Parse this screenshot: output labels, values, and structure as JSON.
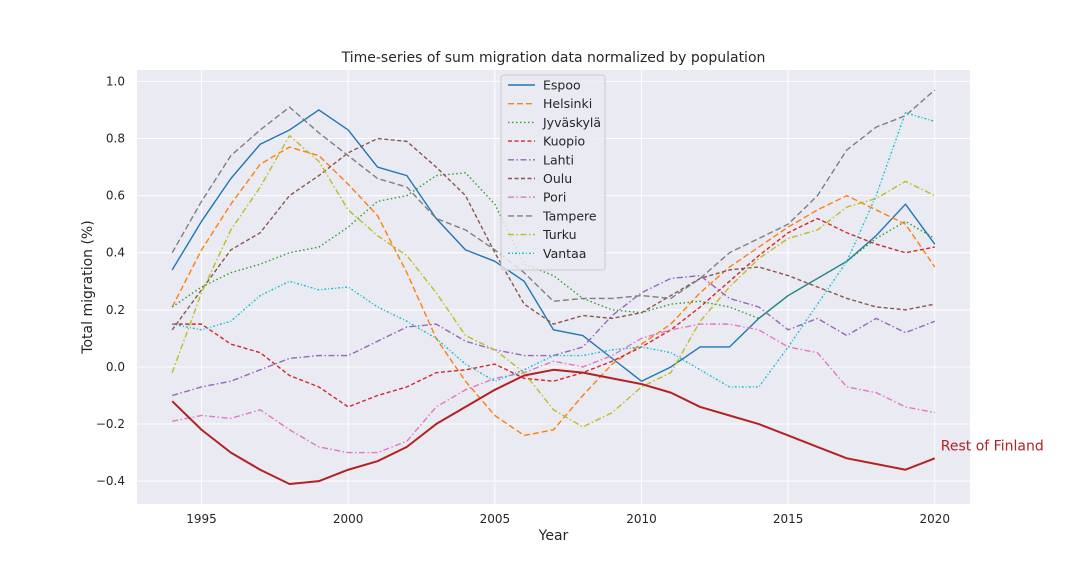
{
  "chart_data": {
    "type": "line",
    "title": "Time-series of sum migration data normalized by population",
    "xlabel": "Year",
    "ylabel": "Total migration (%)",
    "xlim": [
      1992.8,
      2021.2
    ],
    "ylim": [
      -0.48,
      1.04
    ],
    "xticks": [
      1995,
      2000,
      2005,
      2010,
      2015,
      2020
    ],
    "yticks": [
      -0.4,
      -0.2,
      0.0,
      0.2,
      0.4,
      0.6,
      0.8,
      1.0
    ],
    "ytick_labels": [
      "−0.4",
      "−0.2",
      "0.0",
      "0.2",
      "0.4",
      "0.6",
      "0.8",
      "1.0"
    ],
    "grid": true,
    "legend_position": "upper-center",
    "x": [
      1994,
      1995,
      1996,
      1997,
      1998,
      1999,
      2000,
      2001,
      2002,
      2003,
      2004,
      2005,
      2006,
      2007,
      2008,
      2009,
      2010,
      2011,
      2012,
      2013,
      2014,
      2015,
      2016,
      2017,
      2018,
      2019,
      2020
    ],
    "series": [
      {
        "name": "Espoo",
        "color": "#1f77b4",
        "dash": "solid",
        "values": [
          0.34,
          0.51,
          0.66,
          0.78,
          0.83,
          0.9,
          0.83,
          0.7,
          0.67,
          0.52,
          0.41,
          0.37,
          0.3,
          0.13,
          0.11,
          0.03,
          -0.05,
          0.0,
          0.07,
          0.07,
          0.17,
          0.25,
          0.31,
          0.37,
          0.46,
          0.57,
          0.43
        ]
      },
      {
        "name": "Helsinki",
        "color": "#ff7f0e",
        "dash": "dashed",
        "values": [
          0.21,
          0.41,
          0.57,
          0.71,
          0.77,
          0.74,
          0.64,
          0.53,
          0.33,
          0.1,
          -0.05,
          -0.17,
          -0.24,
          -0.22,
          -0.1,
          0.01,
          0.08,
          0.15,
          0.26,
          0.35,
          0.42,
          0.49,
          0.55,
          0.6,
          0.55,
          0.5,
          0.35
        ]
      },
      {
        "name": "Jyväskylä",
        "color": "#2ca02c",
        "dash": "dotted",
        "values": [
          0.21,
          0.28,
          0.33,
          0.36,
          0.4,
          0.42,
          0.49,
          0.58,
          0.6,
          0.67,
          0.68,
          0.57,
          0.36,
          0.32,
          0.24,
          0.2,
          0.19,
          0.22,
          0.23,
          0.21,
          0.17,
          0.25,
          0.31,
          0.37,
          0.45,
          0.51,
          0.45
        ]
      },
      {
        "name": "Kuopio",
        "color": "#d62728",
        "dash": "dashed-short",
        "values": [
          0.15,
          0.15,
          0.08,
          0.05,
          -0.03,
          -0.07,
          -0.14,
          -0.1,
          -0.07,
          -0.02,
          -0.01,
          0.01,
          -0.04,
          -0.05,
          -0.02,
          0.02,
          0.07,
          0.13,
          0.21,
          0.3,
          0.39,
          0.47,
          0.52,
          0.47,
          0.43,
          0.4,
          0.42
        ]
      },
      {
        "name": "Lahti",
        "color": "#9467bd",
        "dash": "dashdot",
        "values": [
          -0.1,
          -0.07,
          -0.05,
          -0.01,
          0.03,
          0.04,
          0.04,
          0.09,
          0.14,
          0.15,
          0.09,
          0.06,
          0.04,
          0.04,
          0.07,
          0.18,
          0.26,
          0.31,
          0.32,
          0.24,
          0.21,
          0.13,
          0.17,
          0.11,
          0.17,
          0.12,
          0.16
        ]
      },
      {
        "name": "Oulu",
        "color": "#8c564b",
        "dash": "dashed-short",
        "values": [
          0.13,
          0.27,
          0.41,
          0.47,
          0.6,
          0.67,
          0.75,
          0.8,
          0.79,
          0.7,
          0.6,
          0.4,
          0.22,
          0.15,
          0.18,
          0.17,
          0.19,
          0.25,
          0.31,
          0.34,
          0.35,
          0.32,
          0.28,
          0.24,
          0.21,
          0.2,
          0.22
        ]
      },
      {
        "name": "Pori",
        "color": "#e377c2",
        "dash": "dashdot",
        "values": [
          -0.19,
          -0.17,
          -0.18,
          -0.15,
          -0.22,
          -0.28,
          -0.3,
          -0.3,
          -0.26,
          -0.14,
          -0.08,
          -0.04,
          -0.02,
          0.02,
          0.0,
          0.04,
          0.1,
          0.13,
          0.15,
          0.15,
          0.13,
          0.07,
          0.05,
          -0.07,
          -0.09,
          -0.14,
          -0.16
        ]
      },
      {
        "name": "Tampere",
        "color": "#7f7f7f",
        "dash": "dashed",
        "values": [
          0.4,
          0.58,
          0.74,
          0.83,
          0.91,
          0.82,
          0.74,
          0.66,
          0.63,
          0.52,
          0.48,
          0.41,
          0.33,
          0.23,
          0.24,
          0.24,
          0.25,
          0.24,
          0.31,
          0.4,
          0.45,
          0.5,
          0.6,
          0.76,
          0.84,
          0.88,
          0.97
        ]
      },
      {
        "name": "Turku",
        "color": "#bcbd22",
        "dash": "dashdot",
        "values": [
          -0.02,
          0.26,
          0.48,
          0.63,
          0.81,
          0.72,
          0.55,
          0.46,
          0.39,
          0.26,
          0.11,
          0.06,
          -0.02,
          -0.15,
          -0.21,
          -0.16,
          -0.07,
          -0.02,
          0.16,
          0.28,
          0.38,
          0.45,
          0.48,
          0.56,
          0.59,
          0.65,
          0.6
        ]
      },
      {
        "name": "Vantaa",
        "color": "#17becf",
        "dash": "dotted-dash",
        "values": [
          0.15,
          0.13,
          0.16,
          0.25,
          0.3,
          0.27,
          0.28,
          0.21,
          0.16,
          0.1,
          0.01,
          -0.05,
          -0.01,
          0.04,
          0.04,
          0.06,
          0.07,
          0.05,
          -0.01,
          -0.07,
          -0.07,
          0.07,
          0.22,
          0.37,
          0.6,
          0.89,
          0.86
        ]
      },
      {
        "name": "Rest of Finland",
        "color": "#b22222",
        "dash": "solid",
        "thick": true,
        "values": [
          -0.12,
          -0.22,
          -0.3,
          -0.36,
          -0.41,
          -0.4,
          -0.36,
          -0.33,
          -0.28,
          -0.2,
          -0.14,
          -0.08,
          -0.03,
          -0.01,
          -0.02,
          -0.04,
          -0.06,
          -0.09,
          -0.14,
          -0.17,
          -0.2,
          -0.24,
          -0.28,
          -0.32,
          -0.34,
          -0.36,
          -0.32
        ]
      }
    ],
    "annotation": {
      "text": "Rest of Finland",
      "color": "#b22222"
    }
  }
}
